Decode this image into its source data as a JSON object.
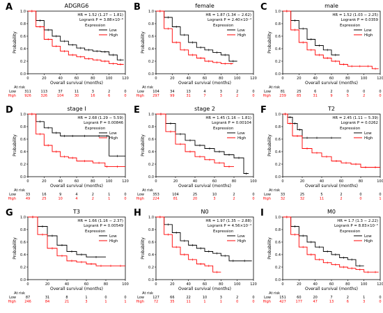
{
  "figure": {
    "title": ""
  },
  "chart_data": [
    {
      "panel_letter": "A",
      "title": "ADGRG6",
      "type": "line",
      "hr_text": "HR = 1.52 (1.27 − 1.81)",
      "p_text": "Logrank P = 3.88×10⁻⁶",
      "xlabel": "Overall survival (months)",
      "ylabel": "Probability",
      "xlim": [
        0,
        120
      ],
      "ylim": [
        0,
        1
      ],
      "xticks": [
        0,
        20,
        40,
        60,
        80,
        100,
        120
      ],
      "yticks": [
        0,
        0.2,
        0.4,
        0.6,
        0.8,
        1.0
      ],
      "legend": {
        "title": "Expression",
        "position": "top-right"
      },
      "series": [
        {
          "name": "Low",
          "color": "#000000",
          "x": [
            0,
            10,
            20,
            30,
            40,
            50,
            60,
            70,
            80,
            90,
            100,
            110,
            118
          ],
          "y": [
            1,
            0.85,
            0.7,
            0.6,
            0.52,
            0.46,
            0.41,
            0.38,
            0.36,
            0.35,
            0.3,
            0.22,
            0.22
          ]
        },
        {
          "name": "High",
          "color": "#ff0000",
          "x": [
            0,
            10,
            20,
            30,
            40,
            50,
            60,
            70,
            80,
            90,
            100,
            110,
            118
          ],
          "y": [
            1,
            0.75,
            0.55,
            0.44,
            0.36,
            0.3,
            0.27,
            0.24,
            0.22,
            0.2,
            0.16,
            0.15,
            0.15
          ]
        }
      ],
      "at_risk": {
        "label": "At risk",
        "low": [
          "311",
          "113",
          "37",
          "11",
          "3",
          "2",
          "0"
        ],
        "high": [
          "926",
          "326",
          "104",
          "30",
          "16",
          "6",
          "0"
        ]
      }
    },
    {
      "panel_letter": "B",
      "title": "female",
      "type": "line",
      "hr_text": "HR = 1.87 (1.34 − 2.62)",
      "p_text": "Logrank P = 2.40×10⁻⁴",
      "xlabel": "Overall survival (months)",
      "ylabel": "Probability",
      "xlim": [
        0,
        120
      ],
      "ylim": [
        0,
        1
      ],
      "xticks": [
        0,
        20,
        40,
        60,
        80,
        100,
        120
      ],
      "yticks": [
        0,
        0.2,
        0.4,
        0.6,
        0.8,
        1.0
      ],
      "legend": {
        "title": "Expression",
        "position": "top-right"
      },
      "series": [
        {
          "name": "Low",
          "color": "#000000",
          "x": [
            0,
            10,
            20,
            30,
            40,
            50,
            60,
            70,
            80,
            90,
            100
          ],
          "y": [
            1,
            0.9,
            0.75,
            0.62,
            0.5,
            0.42,
            0.38,
            0.34,
            0.3,
            0.2,
            0.2
          ]
        },
        {
          "name": "High",
          "color": "#ff0000",
          "x": [
            0,
            10,
            20,
            30,
            40,
            50,
            60,
            70,
            80,
            90,
            95
          ],
          "y": [
            1,
            0.72,
            0.5,
            0.38,
            0.3,
            0.25,
            0.2,
            0.18,
            0.16,
            0.16,
            0.16
          ]
        }
      ],
      "at_risk": {
        "label": "At risk",
        "low": [
          "104",
          "34",
          "13",
          "4",
          "3",
          "2",
          "0"
        ],
        "high": [
          "297",
          "99",
          "31",
          "7",
          "3",
          "2",
          "0"
        ]
      }
    },
    {
      "panel_letter": "C",
      "title": "male",
      "type": "line",
      "hr_text": "HR = 1.52 (1.03 − 2.25)",
      "p_text": "Logrank P = 0.0359",
      "xlabel": "Overall survival (months)",
      "ylabel": "Probability",
      "xlim": [
        0,
        120
      ],
      "ylim": [
        0,
        1
      ],
      "xticks": [
        0,
        20,
        40,
        60,
        80,
        100,
        120
      ],
      "yticks": [
        0,
        0.2,
        0.4,
        0.6,
        0.8,
        1.0
      ],
      "legend": {
        "title": "Expression",
        "position": "top-right"
      },
      "series": [
        {
          "name": "Low",
          "color": "#000000",
          "x": [
            0,
            10,
            20,
            30,
            40,
            50,
            60,
            70
          ],
          "y": [
            1,
            0.85,
            0.72,
            0.55,
            0.45,
            0.38,
            0.3,
            0.3
          ]
        },
        {
          "name": "High",
          "color": "#ff0000",
          "x": [
            0,
            10,
            20,
            30,
            40,
            50,
            60,
            70,
            80,
            90,
            100,
            110,
            118
          ],
          "y": [
            1,
            0.7,
            0.5,
            0.38,
            0.3,
            0.25,
            0.2,
            0.15,
            0.12,
            0.12,
            0.12,
            0.08,
            0.08
          ]
        }
      ],
      "at_risk": {
        "label": "At risk",
        "low": [
          "81",
          "25",
          "6",
          "2",
          "0",
          "0",
          "0"
        ],
        "high": [
          "239",
          "85",
          "31",
          "9",
          "5",
          "2",
          "0"
        ]
      }
    },
    {
      "panel_letter": "D",
      "title": "stage I",
      "type": "line",
      "hr_text": "HR = 2.68 (1.29 − 5.59)",
      "p_text": "Logrank P = 0.00846",
      "xlabel": "Overall survival (months)",
      "ylabel": "Probability",
      "xlim": [
        0,
        120
      ],
      "ylim": [
        0,
        1
      ],
      "xticks": [
        0,
        20,
        40,
        60,
        80,
        100,
        120
      ],
      "yticks": [
        0,
        0.2,
        0.4,
        0.6,
        0.8,
        1.0
      ],
      "legend": {
        "title": "Expression",
        "position": "top-right"
      },
      "series": [
        {
          "name": "Low",
          "color": "#000000",
          "x": [
            0,
            10,
            20,
            30,
            40,
            50,
            60,
            80,
            95,
            100,
            120
          ],
          "y": [
            1,
            0.88,
            0.78,
            0.7,
            0.65,
            0.65,
            0.65,
            0.65,
            0.65,
            0.33,
            0.33
          ]
        },
        {
          "name": "High",
          "color": "#ff0000",
          "x": [
            0,
            10,
            20,
            30,
            40,
            50,
            60,
            80,
            95,
            100,
            120
          ],
          "y": [
            1,
            0.68,
            0.5,
            0.4,
            0.32,
            0.3,
            0.25,
            0.22,
            0.16,
            0.16,
            0.16
          ]
        }
      ],
      "at_risk": {
        "label": "At risk",
        "low": [
          "33",
          "16",
          "9",
          "4",
          "2",
          "1",
          "0"
        ],
        "high": [
          "49",
          "25",
          "10",
          "4",
          "2",
          "1",
          "0"
        ]
      }
    },
    {
      "panel_letter": "E",
      "title": "stage 2",
      "type": "line",
      "hr_text": "HR = 1.45 (1.16 − 1.81)",
      "p_text": "Logrank P = 0.00104",
      "xlabel": "Overall survival (months)",
      "ylabel": "Probability",
      "xlim": [
        0,
        100
      ],
      "ylim": [
        0,
        1
      ],
      "xticks": [
        0,
        20,
        40,
        60,
        80,
        100
      ],
      "yticks": [
        0,
        0.2,
        0.4,
        0.6,
        0.8,
        1.0
      ],
      "legend": {
        "title": "Expression",
        "position": "top-right"
      },
      "series": [
        {
          "name": "Low",
          "color": "#000000",
          "x": [
            0,
            10,
            20,
            30,
            40,
            50,
            60,
            70,
            80,
            90,
            95
          ],
          "y": [
            1,
            0.85,
            0.68,
            0.58,
            0.5,
            0.45,
            0.4,
            0.35,
            0.3,
            0.05,
            0.05
          ]
        },
        {
          "name": "High",
          "color": "#ff0000",
          "x": [
            0,
            10,
            20,
            30,
            40,
            50,
            60,
            70,
            80
          ],
          "y": [
            1,
            0.72,
            0.52,
            0.4,
            0.32,
            0.27,
            0.22,
            0.16,
            0.16
          ]
        }
      ],
      "at_risk": {
        "label": "At risk",
        "low": [
          "353",
          "104",
          "25",
          "10",
          "2",
          "0"
        ],
        "high": [
          "224",
          "81",
          "20",
          "3",
          "2",
          "0"
        ]
      }
    },
    {
      "panel_letter": "F",
      "title": "T2",
      "type": "line",
      "hr_text": "HR = 2.45 (1.11 − 5.39)",
      "p_text": "Logrank P = 0.0262",
      "xlabel": "Overall survival (months)",
      "ylabel": "Probability",
      "xlim": [
        0,
        100
      ],
      "ylim": [
        0,
        1
      ],
      "xticks": [
        0,
        20,
        40,
        60,
        80,
        100
      ],
      "yticks": [
        0,
        0.2,
        0.4,
        0.6,
        0.8,
        1.0
      ],
      "legend": {
        "title": "Expression",
        "position": "top-right"
      },
      "series": [
        {
          "name": "Low",
          "color": "#000000",
          "x": [
            0,
            5,
            10,
            15,
            20,
            30,
            40,
            60
          ],
          "y": [
            1,
            0.95,
            0.85,
            0.75,
            0.62,
            0.62,
            0.62,
            0.62
          ]
        },
        {
          "name": "High",
          "color": "#ff0000",
          "x": [
            0,
            5,
            10,
            20,
            30,
            40,
            50,
            60,
            70,
            80,
            90,
            100
          ],
          "y": [
            1,
            0.85,
            0.65,
            0.45,
            0.38,
            0.32,
            0.25,
            0.22,
            0.2,
            0.15,
            0.15,
            0.15
          ]
        }
      ],
      "at_risk": {
        "label": "At risk",
        "low": [
          "33",
          "25",
          "5",
          "2",
          "0",
          "0"
        ],
        "high": [
          "32",
          "32",
          "11",
          "2",
          "0",
          "1"
        ]
      }
    },
    {
      "panel_letter": "G",
      "title": "T3",
      "type": "line",
      "hr_text": "HR = 1.66 (1.16 − 2.37)",
      "p_text": "Logrank P = 0.00549",
      "xlabel": "Overall survival (months)",
      "ylabel": "Probability",
      "xlim": [
        0,
        100
      ],
      "ylim": [
        0,
        1
      ],
      "xticks": [
        0,
        20,
        40,
        60,
        80,
        100
      ],
      "yticks": [
        0,
        0.2,
        0.4,
        0.6,
        0.8,
        1.0
      ],
      "legend": {
        "title": "Expression",
        "position": "top-right"
      },
      "series": [
        {
          "name": "Low",
          "color": "#000000",
          "x": [
            0,
            10,
            20,
            30,
            40,
            50,
            60,
            80
          ],
          "y": [
            1,
            0.85,
            0.7,
            0.55,
            0.45,
            0.4,
            0.36,
            0.36
          ]
        },
        {
          "name": "High",
          "color": "#ff0000",
          "x": [
            0,
            10,
            20,
            30,
            40,
            50,
            60,
            70,
            80,
            90,
            100
          ],
          "y": [
            1,
            0.72,
            0.5,
            0.38,
            0.3,
            0.28,
            0.25,
            0.22,
            0.22,
            0.22,
            0.22
          ]
        }
      ],
      "at_risk": {
        "label": "At risk",
        "low": [
          "87",
          "31",
          "8",
          "1",
          "0",
          "0"
        ],
        "high": [
          "246",
          "84",
          "21",
          "3",
          "1",
          "1"
        ]
      }
    },
    {
      "panel_letter": "H",
      "title": "N0",
      "type": "line",
      "hr_text": "HR = 1.97 (1.35 − 2.88)",
      "p_text": "Logrank P = 4.56×10⁻⁴",
      "xlabel": "Overall survival (months)",
      "ylabel": "Probability",
      "xlim": [
        0,
        120
      ],
      "ylim": [
        0,
        1
      ],
      "xticks": [
        0,
        20,
        40,
        60,
        80,
        100,
        120
      ],
      "yticks": [
        0,
        0.2,
        0.4,
        0.6,
        0.8,
        1.0
      ],
      "legend": {
        "title": "Expression",
        "position": "top-right"
      },
      "series": [
        {
          "name": "Low",
          "color": "#000000",
          "x": [
            0,
            10,
            20,
            30,
            40,
            50,
            60,
            70,
            80,
            90,
            100,
            118
          ],
          "y": [
            1,
            0.88,
            0.75,
            0.62,
            0.55,
            0.5,
            0.45,
            0.42,
            0.38,
            0.3,
            0.3,
            0.3
          ]
        },
        {
          "name": "High",
          "color": "#ff0000",
          "x": [
            0,
            10,
            20,
            30,
            40,
            50,
            60,
            70,
            80
          ],
          "y": [
            1,
            0.72,
            0.52,
            0.4,
            0.32,
            0.25,
            0.22,
            0.12,
            0.12
          ]
        }
      ],
      "at_risk": {
        "label": "At risk",
        "low": [
          "127",
          "66",
          "22",
          "10",
          "3",
          "2",
          "0"
        ],
        "high": [
          "72",
          "35",
          "11",
          "1",
          "1",
          "0",
          "0"
        ]
      }
    },
    {
      "panel_letter": "I",
      "title": "M0",
      "type": "line",
      "hr_text": "HR = 1.7 (1.3 − 2.22)",
      "p_text": "Logrank P = 8.83×10⁻⁵",
      "xlabel": "Overall survival (months)",
      "ylabel": "Probability",
      "xlim": [
        0,
        120
      ],
      "ylim": [
        0,
        1
      ],
      "xticks": [
        0,
        20,
        40,
        60,
        80,
        100,
        120
      ],
      "yticks": [
        0,
        0.2,
        0.4,
        0.6,
        0.8,
        1.0
      ],
      "legend": {
        "title": "Expression",
        "position": "top-right"
      },
      "series": [
        {
          "name": "Low",
          "color": "#000000",
          "x": [
            0,
            10,
            20,
            30,
            40,
            50,
            60,
            70,
            80,
            90,
            100
          ],
          "y": [
            1,
            0.85,
            0.7,
            0.6,
            0.52,
            0.45,
            0.4,
            0.35,
            0.32,
            0.22,
            0.22
          ]
        },
        {
          "name": "High",
          "color": "#ff0000",
          "x": [
            0,
            10,
            20,
            30,
            40,
            50,
            60,
            70,
            80,
            90,
            100,
            110,
            118
          ],
          "y": [
            1,
            0.72,
            0.52,
            0.4,
            0.32,
            0.27,
            0.24,
            0.2,
            0.18,
            0.16,
            0.12,
            0.12,
            0.12
          ]
        }
      ],
      "at_risk": {
        "label": "At risk",
        "low": [
          "151",
          "60",
          "20",
          "7",
          "2",
          "1",
          "0"
        ],
        "high": [
          "427",
          "177",
          "47",
          "13",
          "6",
          "3",
          "0"
        ]
      }
    }
  ]
}
